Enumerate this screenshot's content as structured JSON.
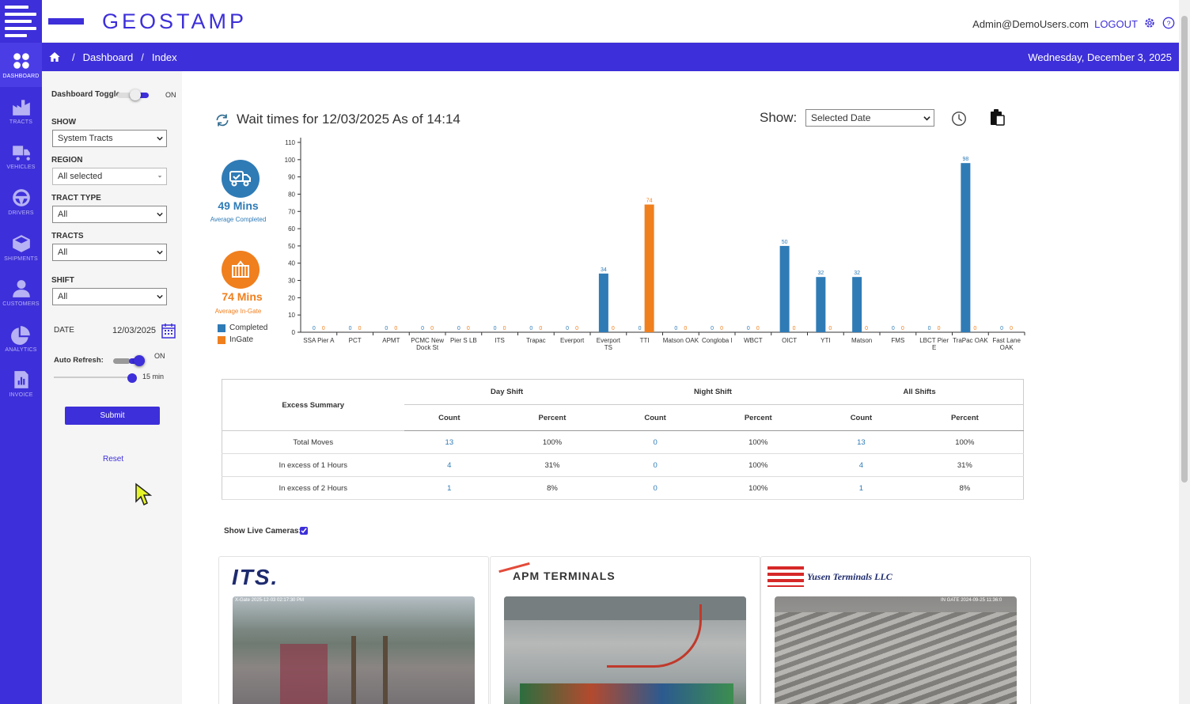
{
  "app": {
    "brand": "GEOSTAMP",
    "user": "Admin@DemoUsers.com",
    "logout": "LOGOUT"
  },
  "nav": {
    "rail": [
      {
        "label": "DASHBOARD",
        "icon": "dashboard-icon"
      },
      {
        "label": "TRACTS",
        "icon": "tracts-icon"
      },
      {
        "label": "VEHICLES",
        "icon": "vehicles-icon"
      },
      {
        "label": "DRIVERS",
        "icon": "drivers-icon"
      },
      {
        "label": "SHIPMENTS",
        "icon": "shipments-icon"
      },
      {
        "label": "CUSTOMERS",
        "icon": "customers-icon"
      },
      {
        "label": "ANALYTICS",
        "icon": "analytics-icon"
      },
      {
        "label": "INVOICE",
        "icon": "invoice-icon"
      }
    ],
    "breadcrumb": [
      "Dashboard",
      "Index"
    ],
    "date": "Wednesday, December 3, 2025"
  },
  "filters": {
    "dashboard_toggle": "Dashboard Toggle",
    "toggle_state": "ON",
    "show_label": "SHOW",
    "show_value": "System Tracts",
    "region_label": "REGION",
    "region_value": "All selected",
    "tract_type_label": "TRACT TYPE",
    "tract_type_value": "All",
    "tracts_label": "TRACTS",
    "tracts_value": "All",
    "shift_label": "SHIFT",
    "shift_value": "All",
    "date_label": "DATE",
    "date_value": "12/03/2025",
    "auto_refresh_label": "Auto Refresh:",
    "auto_refresh_state": "ON",
    "refresh_interval": "15 min",
    "submit": "Submit",
    "reset": "Reset"
  },
  "main": {
    "title": "Wait times for 12/03/2025 As of 14:14",
    "show_label": "Show:",
    "show_value": "Selected Date",
    "kpi_completed": {
      "value": "49 Mins",
      "label": "Average Completed",
      "color": "#2f7bb6"
    },
    "kpi_ingate": {
      "value": "74 Mins",
      "label": "Average In-Gate",
      "color": "#f07f1e"
    },
    "legend": [
      "Completed",
      "InGate"
    ]
  },
  "chart_data": {
    "type": "bar",
    "ylim": [
      0,
      110
    ],
    "yticks": [
      0,
      10,
      20,
      30,
      40,
      50,
      60,
      70,
      80,
      90,
      100,
      110
    ],
    "categories": [
      "SSA Pier A",
      "PCT",
      "APMT",
      "PCMC New Dock St",
      "Pier S LB",
      "ITS",
      "Trapac",
      "Everport",
      "Everport TS",
      "TTI",
      "Matson OAK",
      "Congloba l",
      "WBCT",
      "OICT",
      "YTI",
      "Matson",
      "FMS",
      "LBCT Pier E",
      "TraPac OAK",
      "Fast Lane OAK"
    ],
    "series": [
      {
        "name": "Completed",
        "color": "#2f7bb6",
        "values": [
          0,
          0,
          0,
          0,
          0,
          0,
          0,
          0,
          34,
          0,
          0,
          0,
          0,
          50,
          32,
          32,
          0,
          0,
          98,
          0
        ]
      },
      {
        "name": "InGate",
        "color": "#f07f1e",
        "values": [
          0,
          0,
          0,
          0,
          0,
          0,
          0,
          0,
          0,
          74,
          0,
          0,
          0,
          0,
          0,
          0,
          0,
          0,
          0,
          0
        ]
      }
    ]
  },
  "summary": {
    "corner": "Excess Summary",
    "groups": [
      "Day Shift",
      "Night Shift",
      "All Shifts"
    ],
    "subheads": [
      "Count",
      "Percent"
    ],
    "rows": [
      {
        "label": "Total Moves",
        "cells": [
          "13",
          "100%",
          "0",
          "100%",
          "13",
          "100%"
        ]
      },
      {
        "label": "In excess of 1 Hours",
        "cells": [
          "4",
          "31%",
          "0",
          "100%",
          "4",
          "31%"
        ]
      },
      {
        "label": "In excess of 2 Hours",
        "cells": [
          "1",
          "8%",
          "0",
          "100%",
          "1",
          "8%"
        ]
      }
    ]
  },
  "cameras": {
    "label": "Show Live Cameras:",
    "feeds": [
      {
        "logo": "ITS.",
        "stamp": "X-Gate 2025-12-03 02:17:30 PM"
      },
      {
        "logo": "APM TERMINALS",
        "stamp": ""
      },
      {
        "logo": "Yusen Terminals LLC",
        "stamp": "IN GATE 2024-09-25 11:36:0"
      }
    ]
  }
}
